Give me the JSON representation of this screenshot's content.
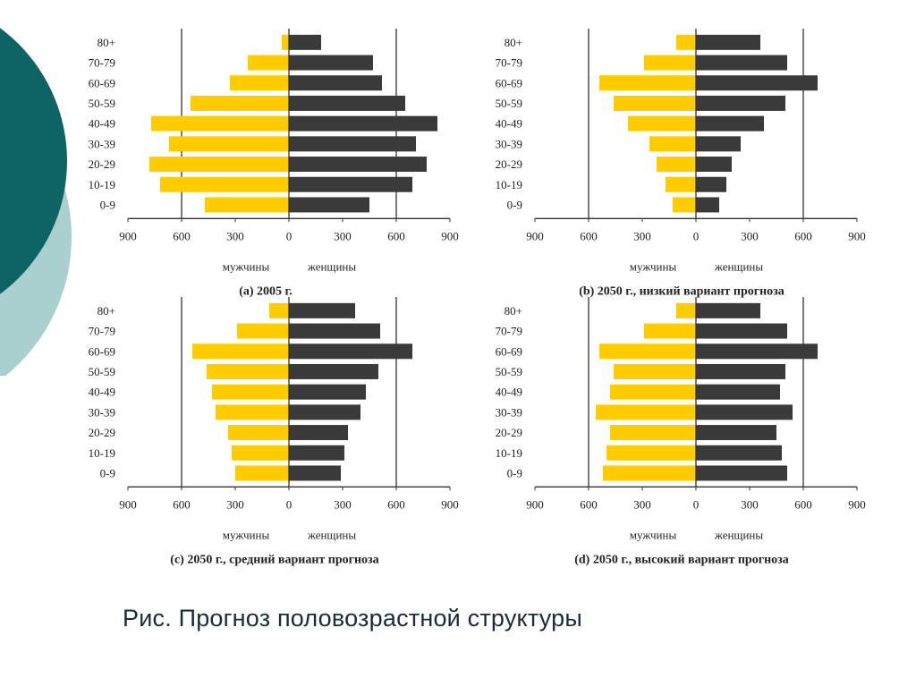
{
  "colors": {
    "male": "#FFCC00",
    "female": "#3A3A3A",
    "decor_dark": "#0E6464",
    "decor_light": "#A9CFCF"
  },
  "caption": "Рис. Прогноз половозрастной структуры",
  "chart_data": [
    {
      "type": "bar",
      "title": "(a) 2005 г.",
      "categories": [
        "80+",
        "70-79",
        "60-69",
        "50-59",
        "40-49",
        "30-39",
        "20-29",
        "10-19",
        "0-9"
      ],
      "series": [
        {
          "name": "мужчины",
          "values": [
            40,
            230,
            330,
            550,
            770,
            670,
            780,
            720,
            470
          ]
        },
        {
          "name": "женщины",
          "values": [
            180,
            470,
            520,
            650,
            830,
            710,
            770,
            690,
            450
          ]
        }
      ],
      "xticks": [
        "900",
        "600",
        "300",
        "0",
        "300",
        "600",
        "900"
      ],
      "xlim": [
        -900,
        900
      ]
    },
    {
      "type": "bar",
      "title": "(b) 2050 г., низкий вариант прогноза",
      "categories": [
        "80+",
        "70-79",
        "60-69",
        "50-59",
        "40-49",
        "30-39",
        "20-29",
        "10-19",
        "0-9"
      ],
      "series": [
        {
          "name": "мужчины",
          "values": [
            110,
            290,
            540,
            460,
            380,
            260,
            220,
            170,
            130
          ]
        },
        {
          "name": "женщины",
          "values": [
            360,
            510,
            680,
            500,
            380,
            250,
            200,
            170,
            130
          ]
        }
      ],
      "xticks": [
        "900",
        "600",
        "300",
        "0",
        "300",
        "600",
        "900"
      ],
      "xlim": [
        -900,
        900
      ]
    },
    {
      "type": "bar",
      "title": "(c) 2050 г., средний вариант прогноза",
      "categories": [
        "80+",
        "70-79",
        "60-69",
        "50-59",
        "40-49",
        "30-39",
        "20-29",
        "10-19",
        "0-9"
      ],
      "series": [
        {
          "name": "мужчины",
          "values": [
            110,
            290,
            540,
            460,
            430,
            410,
            340,
            320,
            300
          ]
        },
        {
          "name": "женщины",
          "values": [
            370,
            510,
            690,
            500,
            430,
            400,
            330,
            310,
            290
          ]
        }
      ],
      "xticks": [
        "900",
        "600",
        "300",
        "0",
        "300",
        "600",
        "900"
      ],
      "xlim": [
        -900,
        900
      ]
    },
    {
      "type": "bar",
      "title": "(d) 2050 г., высокий вариант прогноза",
      "categories": [
        "80+",
        "70-79",
        "60-69",
        "50-59",
        "40-49",
        "30-39",
        "20-29",
        "10-19",
        "0-9"
      ],
      "series": [
        {
          "name": "мужчины",
          "values": [
            110,
            290,
            540,
            460,
            480,
            560,
            480,
            500,
            520
          ]
        },
        {
          "name": "женщины",
          "values": [
            360,
            510,
            680,
            500,
            470,
            540,
            450,
            480,
            510
          ]
        }
      ],
      "xticks": [
        "900",
        "600",
        "300",
        "0",
        "300",
        "600",
        "900"
      ],
      "xlim": [
        -900,
        900
      ]
    }
  ]
}
